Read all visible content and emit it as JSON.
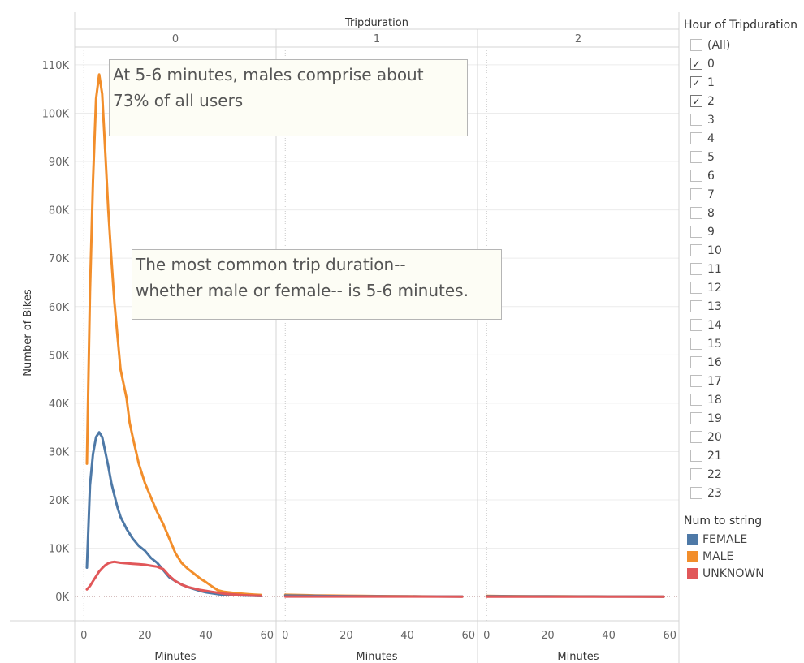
{
  "chart_data": {
    "type": "line",
    "column_header": "Tripduration",
    "panels": [
      "0",
      "1",
      "2"
    ],
    "xlabel": "Minutes",
    "ylabel": "Number of Bikes",
    "xlim": [
      -3,
      63
    ],
    "ylim": [
      -5000,
      113000
    ],
    "x_ticks": [
      "0",
      "20",
      "40",
      "60"
    ],
    "x_tick_values": [
      0,
      20,
      40,
      60
    ],
    "y_ticks": [
      "0K",
      "10K",
      "20K",
      "30K",
      "40K",
      "50K",
      "60K",
      "70K",
      "80K",
      "90K",
      "100K",
      "110K"
    ],
    "y_tick_values": [
      0,
      10000,
      20000,
      30000,
      40000,
      50000,
      60000,
      70000,
      80000,
      90000,
      100000,
      110000
    ],
    "grid": true,
    "series": [
      {
        "name": "MALE",
        "color": "#f28e2b",
        "panels": [
          {
            "x": [
              1,
              2,
              3,
              4,
              5,
              6,
              7,
              8,
              9,
              10,
              11,
              12,
              14,
              15,
              16,
              18,
              20,
              22,
              24,
              26,
              28,
              30,
              32,
              34,
              36,
              38,
              40,
              42,
              44,
              46,
              48,
              50,
              52,
              54,
              56,
              58
            ],
            "y": [
              27500,
              63000,
              86000,
              103000,
              108000,
              104000,
              92000,
              80000,
              70000,
              61000,
              54000,
              47000,
              41000,
              36000,
              33000,
              27500,
              23500,
              20500,
              17500,
              15000,
              12000,
              9000,
              7000,
              5800,
              4800,
              3800,
              3000,
              2100,
              1300,
              1000,
              850,
              700,
              600,
              500,
              420,
              350
            ]
          },
          {
            "x": [
              0,
              5,
              10,
              15,
              20,
              25,
              30,
              35,
              40,
              45,
              50,
              55,
              58
            ],
            "y": [
              380,
              320,
              260,
              220,
              180,
              150,
              120,
              100,
              80,
              60,
              40,
              30,
              20
            ]
          },
          {
            "x": [
              0,
              5,
              10,
              15,
              20,
              25,
              30,
              35,
              40,
              45,
              50,
              55,
              58
            ],
            "y": [
              150,
              120,
              100,
              90,
              80,
              70,
              60,
              50,
              40,
              30,
              20,
              15,
              10
            ]
          }
        ]
      },
      {
        "name": "FEMALE",
        "color": "#4e79a7",
        "panels": [
          {
            "x": [
              1,
              2,
              3,
              4,
              5,
              6,
              7,
              8,
              9,
              10,
              11,
              12,
              14,
              16,
              18,
              20,
              22,
              24,
              26,
              28,
              30,
              32,
              34,
              36,
              38,
              40,
              42,
              44,
              46,
              48,
              50,
              52,
              54,
              56,
              58
            ],
            "y": [
              6000,
              23000,
              29500,
              33000,
              34000,
              33000,
              30000,
              27000,
              23500,
              21000,
              18500,
              16500,
              14000,
              12000,
              10500,
              9500,
              8000,
              7000,
              5500,
              4000,
              3200,
              2500,
              2000,
              1600,
              1200,
              900,
              700,
              500,
              400,
              350,
              300,
              250,
              200,
              150,
              120
            ]
          },
          {
            "x": [
              0,
              5,
              10,
              15,
              20,
              25,
              30,
              35,
              40,
              45,
              50,
              55,
              58
            ],
            "y": [
              220,
              180,
              150,
              120,
              100,
              80,
              70,
              60,
              50,
              40,
              30,
              20,
              15
            ]
          },
          {
            "x": [
              0,
              5,
              10,
              15,
              20,
              25,
              30,
              35,
              40,
              45,
              50,
              55,
              58
            ],
            "y": [
              90,
              70,
              60,
              50,
              45,
              40,
              35,
              30,
              25,
              20,
              15,
              10,
              5
            ]
          }
        ]
      },
      {
        "name": "UNKNOWN",
        "color": "#e15759",
        "panels": [
          {
            "x": [
              1,
              2,
              3,
              4,
              5,
              6,
              7,
              8,
              9,
              10,
              12,
              14,
              16,
              18,
              20,
              22,
              24,
              26,
              28,
              30,
              32,
              34,
              36,
              38,
              40,
              42,
              44,
              46,
              48,
              50,
              52,
              54,
              56,
              58
            ],
            "y": [
              1500,
              2200,
              3200,
              4200,
              5200,
              5900,
              6500,
              6900,
              7100,
              7200,
              7000,
              6900,
              6800,
              6700,
              6600,
              6400,
              6200,
              5700,
              4300,
              3200,
              2500,
              2000,
              1700,
              1400,
              1200,
              1000,
              800,
              600,
              500,
              400,
              300,
              250,
              200,
              150
            ]
          },
          {
            "x": [
              0,
              58
            ],
            "y": [
              20,
              10
            ]
          },
          {
            "x": [
              0,
              58
            ],
            "y": [
              10,
              5
            ]
          }
        ]
      }
    ],
    "annotations": [
      {
        "lines": [
          "At 5-6 minutes, males comprise about",
          "73% of all users"
        ]
      },
      {
        "lines": [
          "The most common trip duration--",
          "whether male or female-- is 5-6 minutes."
        ]
      }
    ]
  },
  "filter": {
    "title": "Hour of Tripduration",
    "items": [
      {
        "label": "(All)",
        "checked": false
      },
      {
        "label": "0",
        "checked": true
      },
      {
        "label": "1",
        "checked": true
      },
      {
        "label": "2",
        "checked": true
      },
      {
        "label": "3",
        "checked": false
      },
      {
        "label": "4",
        "checked": false
      },
      {
        "label": "5",
        "checked": false
      },
      {
        "label": "6",
        "checked": false
      },
      {
        "label": "7",
        "checked": false
      },
      {
        "label": "8",
        "checked": false
      },
      {
        "label": "9",
        "checked": false
      },
      {
        "label": "10",
        "checked": false
      },
      {
        "label": "11",
        "checked": false
      },
      {
        "label": "12",
        "checked": false
      },
      {
        "label": "13",
        "checked": false
      },
      {
        "label": "14",
        "checked": false
      },
      {
        "label": "15",
        "checked": false
      },
      {
        "label": "16",
        "checked": false
      },
      {
        "label": "17",
        "checked": false
      },
      {
        "label": "18",
        "checked": false
      },
      {
        "label": "19",
        "checked": false
      },
      {
        "label": "20",
        "checked": false
      },
      {
        "label": "21",
        "checked": false
      },
      {
        "label": "22",
        "checked": false
      },
      {
        "label": "23",
        "checked": false
      }
    ]
  },
  "legend": {
    "title": "Num to string",
    "items": [
      {
        "label": "FEMALE",
        "color": "#4e79a7"
      },
      {
        "label": "MALE",
        "color": "#f28e2b"
      },
      {
        "label": "UNKNOWN",
        "color": "#e15759"
      }
    ]
  }
}
